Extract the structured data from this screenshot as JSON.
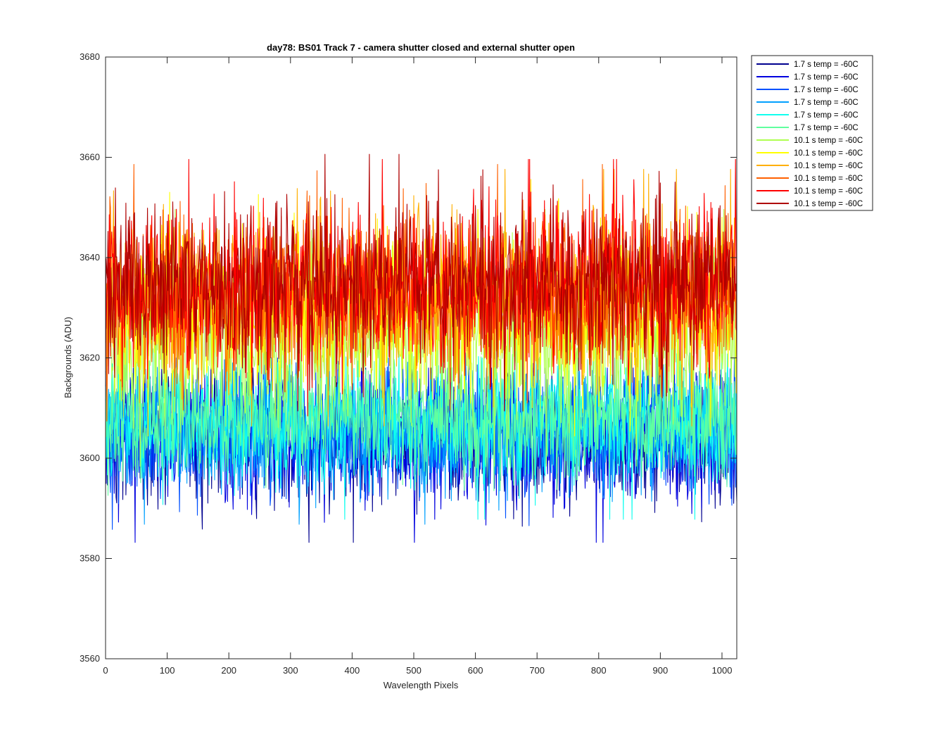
{
  "chart_data": {
    "type": "line",
    "title": "day78: BS01  Track 7 - camera shutter closed and external shutter open",
    "xlabel": "Wavelength Pixels",
    "ylabel": "Backgrounds (ADU)",
    "xlim": [
      0,
      1024
    ],
    "ylim": [
      3560,
      3680
    ],
    "xticks": [
      0,
      100,
      200,
      300,
      400,
      500,
      600,
      700,
      800,
      900,
      1000
    ],
    "yticks": [
      3560,
      3580,
      3600,
      3620,
      3640,
      3660,
      3680
    ],
    "grid": false,
    "legend_position": "outside-top-right",
    "series": [
      {
        "name": "1.7 s temp = -60C",
        "color": "#00008f",
        "mean": 3604,
        "spread": 6.5,
        "min": 3575,
        "max": 3618
      },
      {
        "name": "1.7 s temp = -60C",
        "color": "#0000df",
        "mean": 3604,
        "spread": 6.5,
        "min": 3578,
        "max": 3618
      },
      {
        "name": "1.7 s temp = -60C",
        "color": "#0050ff",
        "mean": 3605,
        "spread": 6.0,
        "min": 3579,
        "max": 3620
      },
      {
        "name": "1.7 s temp = -60C",
        "color": "#00a0ff",
        "mean": 3606,
        "spread": 6.0,
        "min": 3580,
        "max": 3621
      },
      {
        "name": "1.7 s temp = -60C",
        "color": "#10ffef",
        "mean": 3607,
        "spread": 6.0,
        "min": 3572,
        "max": 3622
      },
      {
        "name": "1.7 s temp = -60C",
        "color": "#60ff9f",
        "mean": 3608,
        "spread": 6.0,
        "min": 3581,
        "max": 3624
      },
      {
        "name": "10.1 s temp = -60C",
        "color": "#afff50",
        "mean": 3624,
        "spread": 8.0,
        "min": 3596,
        "max": 3654
      },
      {
        "name": "10.1 s temp = -60C",
        "color": "#ffff00",
        "mean": 3630,
        "spread": 8.0,
        "min": 3600,
        "max": 3666
      },
      {
        "name": "10.1 s temp = -60C",
        "color": "#ffaf00",
        "mean": 3632,
        "spread": 8.0,
        "min": 3602,
        "max": 3660
      },
      {
        "name": "10.1 s temp = -60C",
        "color": "#ff6000",
        "mean": 3633,
        "spread": 8.0,
        "min": 3604,
        "max": 3662
      },
      {
        "name": "10.1 s temp = -60C",
        "color": "#ff0000",
        "mean": 3634,
        "spread": 8.0,
        "min": 3606,
        "max": 3669
      },
      {
        "name": "10.1 s temp = -60C",
        "color": "#af0000",
        "mean": 3635,
        "spread": 8.0,
        "min": 3608,
        "max": 3674
      }
    ]
  }
}
